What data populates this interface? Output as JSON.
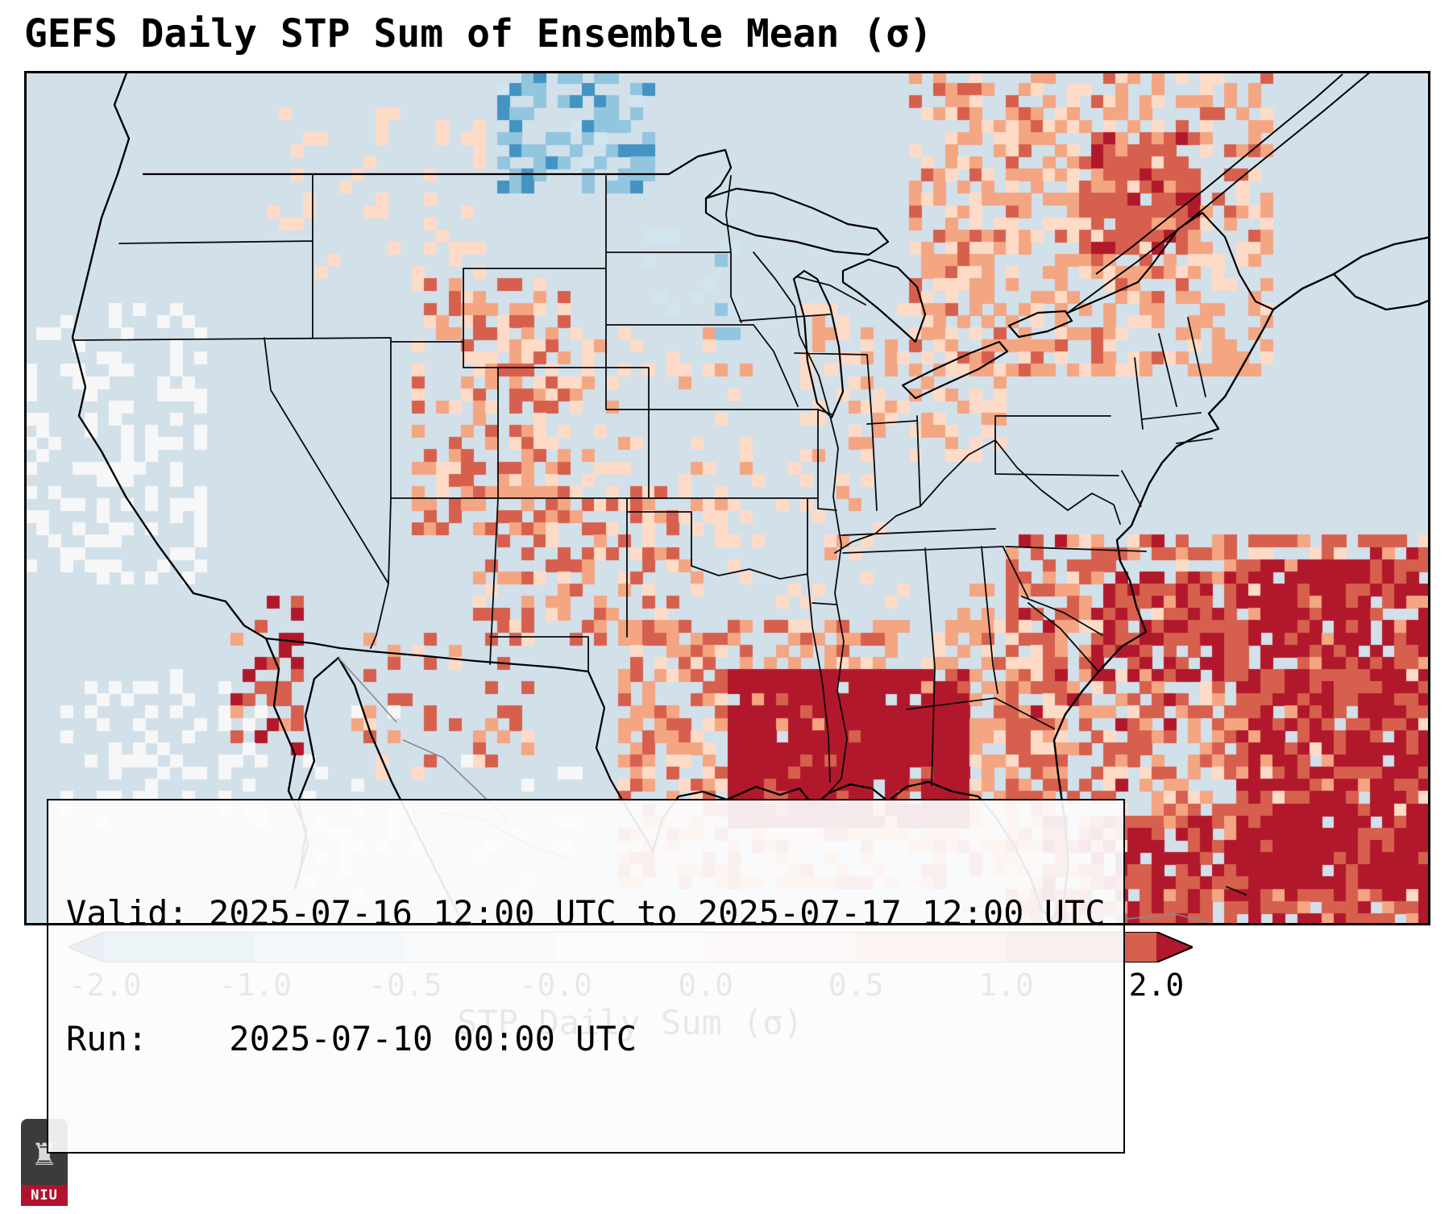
{
  "title": "GEFS Daily STP Sum of Ensemble Mean (σ)",
  "info_box": {
    "valid": "Valid: 2025-07-16 12:00 UTC to 2025-07-17 12:00 UTC",
    "run": "Run:    2025-07-10 00:00 UTC"
  },
  "logo": {
    "label": "NIU",
    "icon": "castle-icon",
    "banner_color": "#b3122f",
    "body_color": "#3b3b3d"
  },
  "chart_data": {
    "type": "heatmap",
    "title": "GEFS Daily STP Sum of Ensemble Mean (σ)",
    "subtitle": "",
    "colorbar": {
      "label": "STP Daily Sum (σ)",
      "tick_labels": [
        "-2.0",
        "-1.0",
        "-0.5",
        "-0.0",
        "0.0",
        "0.5",
        "1.0",
        "2.0"
      ],
      "boundaries": [
        -2,
        -1,
        -0.5,
        -0.05,
        0.05,
        0.5,
        1,
        2
      ],
      "colors": [
        "#2166ac",
        "#4393c3",
        "#92c5de",
        "#d1e5f0",
        "#f7f7f7",
        "#fddbc7",
        "#f4a582",
        "#d6604d",
        "#b2182b"
      ],
      "extend": "both",
      "orientation": "horizontal"
    },
    "map_background": "#d2e0ea",
    "border_color": "#000000",
    "grid": {
      "cols": 116,
      "rows": 70,
      "seed": 1337
    },
    "regions": [
      {
        "name": "gulf-of-mexico-core",
        "x0": 0.5,
        "x1": 0.67,
        "y0": 0.7,
        "y1": 0.89,
        "mean": 2.8,
        "spread": 0.9,
        "density": 0.9
      },
      {
        "name": "gulf-coast-broad",
        "x0": 0.42,
        "x1": 0.71,
        "y0": 0.64,
        "y1": 0.96,
        "mean": 0.8,
        "spread": 0.55,
        "density": 0.6
      },
      {
        "name": "atlantic-southeast",
        "x0": 0.7,
        "x1": 1.0,
        "y0": 0.55,
        "y1": 1.0,
        "mean": 1.2,
        "spread": 0.9,
        "density": 0.6
      },
      {
        "name": "atlantic-core-east",
        "x0": 0.86,
        "x1": 1.0,
        "y0": 0.57,
        "y1": 0.95,
        "mean": 2.4,
        "spread": 0.9,
        "density": 0.78
      },
      {
        "name": "hatteras-core",
        "x0": 0.76,
        "x1": 0.86,
        "y0": 0.59,
        "y1": 0.72,
        "mean": 2.0,
        "spread": 0.8,
        "density": 0.55
      },
      {
        "name": "caribbean",
        "x0": 0.72,
        "x1": 1.0,
        "y0": 0.875,
        "y1": 1.0,
        "mean": 2.0,
        "spread": 1.0,
        "density": 0.6
      },
      {
        "name": "northeast-quebec",
        "x0": 0.63,
        "x1": 0.89,
        "y0": 0.0,
        "y1": 0.36,
        "mean": 0.7,
        "spread": 0.45,
        "density": 0.58
      },
      {
        "name": "northeast-core",
        "x0": 0.75,
        "x1": 0.84,
        "y0": 0.07,
        "y1": 0.22,
        "mean": 1.6,
        "spread": 0.7,
        "density": 0.72
      },
      {
        "name": "ohio-valley-lakes",
        "x0": 0.55,
        "x1": 0.7,
        "y0": 0.27,
        "y1": 0.46,
        "mean": 0.4,
        "spread": 0.25,
        "density": 0.42
      },
      {
        "name": "colorado-rockies",
        "x0": 0.28,
        "x1": 0.39,
        "y0": 0.25,
        "y1": 0.54,
        "mean": 0.85,
        "spread": 0.75,
        "density": 0.5
      },
      {
        "name": "nm-tx-panhandle-ok",
        "x0": 0.32,
        "x1": 0.47,
        "y0": 0.49,
        "y1": 0.67,
        "mean": 1.0,
        "spread": 0.85,
        "density": 0.42
      },
      {
        "name": "west-texas-chihuahua",
        "x0": 0.23,
        "x1": 0.36,
        "y0": 0.66,
        "y1": 0.83,
        "mean": 0.95,
        "spread": 0.95,
        "density": 0.28
      },
      {
        "name": "baja-sonora",
        "x0": 0.145,
        "x1": 0.195,
        "y0": 0.62,
        "y1": 0.8,
        "mean": 1.6,
        "spread": 0.9,
        "density": 0.42
      },
      {
        "name": "montana-idaho-sparse",
        "x0": 0.17,
        "x1": 0.34,
        "y0": 0.04,
        "y1": 0.24,
        "mean": 0.3,
        "spread": 0.2,
        "density": 0.16
      },
      {
        "name": "plains-scatter",
        "x0": 0.36,
        "x1": 0.52,
        "y0": 0.3,
        "y1": 0.62,
        "mean": 0.35,
        "spread": 0.3,
        "density": 0.2
      },
      {
        "name": "midsouth-scatter",
        "x0": 0.5,
        "x1": 0.63,
        "y0": 0.44,
        "y1": 0.63,
        "mean": 0.3,
        "spread": 0.25,
        "density": 0.16
      },
      {
        "name": "dakotas-negative",
        "x0": 0.34,
        "x1": 0.445,
        "y0": 0.0,
        "y1": 0.14,
        "mean": -0.8,
        "spread": 0.35,
        "density": 0.55
      },
      {
        "name": "minnesota-negative",
        "x0": 0.44,
        "x1": 0.51,
        "y0": 0.19,
        "y1": 0.31,
        "mean": -0.45,
        "spread": 0.25,
        "density": 0.22
      },
      {
        "name": "pacific-offshore-white",
        "x0": 0.0,
        "x1": 0.13,
        "y0": 0.27,
        "y1": 0.6,
        "mean": 0.0,
        "spread": 0.02,
        "density": 0.32
      },
      {
        "name": "mexico-white",
        "x0": 0.03,
        "x1": 0.17,
        "y0": 0.7,
        "y1": 0.89,
        "mean": 0.0,
        "spread": 0.02,
        "density": 0.28
      },
      {
        "name": "texas-mexico-white",
        "x0": 0.2,
        "x1": 0.4,
        "y0": 0.8,
        "y1": 0.97,
        "mean": 0.0,
        "spread": 0.02,
        "density": 0.1
      },
      {
        "name": "florida-peach",
        "x0": 0.655,
        "x1": 0.745,
        "y0": 0.6,
        "y1": 0.86,
        "mean": 0.5,
        "spread": 0.4,
        "density": 0.38
      }
    ]
  }
}
